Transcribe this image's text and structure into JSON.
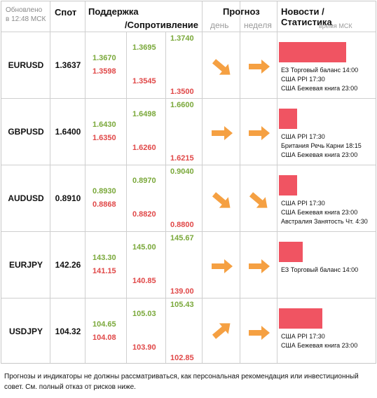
{
  "header": {
    "updated_line1": "Обновлено",
    "updated_line2": "в 12:48 МСК",
    "spot": "Спот",
    "support": "Поддержка",
    "resistance": "/Сопротивление",
    "forecast": "Прогноз",
    "day": "день",
    "week": "неделя",
    "news": "Новости / Статистика",
    "time_msk": "время МСК"
  },
  "colors": {
    "support": "#7aa83a",
    "resistance": "#e04848",
    "arrow": "#f5a042",
    "news_bar": "#f05462"
  },
  "rows": [
    {
      "symbol": "EURUSD",
      "spot": "1.3637",
      "s1": "1.3670",
      "r1": "1.3598",
      "s2": "1.3695",
      "r2": "1.3545",
      "s3": "1.3740",
      "r3": "1.3500",
      "day": "down-right-arrow",
      "week": "right-arrow",
      "news_level": 0.8,
      "news": [
        "ЕЗ Торговый баланс 14:00",
        "США PPI 17:30",
        "США Бежевая книга 23:00"
      ]
    },
    {
      "symbol": "GBPUSD",
      "spot": "1.6400",
      "s1": "1.6430",
      "r1": "1.6350",
      "s2": "1.6498",
      "r2": "1.6260",
      "s3": "1.6600",
      "r3": "1.6215",
      "day": "right-arrow",
      "week": "right-arrow",
      "news_level": 0.22,
      "news": [
        "США PPI 17:30",
        "Британия Речь Карни 18:15",
        "США Бежевая книга 23:00"
      ]
    },
    {
      "symbol": "AUDUSD",
      "spot": "0.8910",
      "s1": "0.8930",
      "r1": "0.8868",
      "s2": "0.8970",
      "r2": "0.8820",
      "s3": "0.9040",
      "r3": "0.8800",
      "day": "down-right-arrow",
      "week": "down-right-arrow",
      "news_level": 0.22,
      "news": [
        "США PPI 17:30",
        "США Бежевая книга 23:00",
        "Австралия Занятость Чт. 4:30"
      ]
    },
    {
      "symbol": "EURJPY",
      "spot": "142.26",
      "s1": "143.30",
      "r1": "141.15",
      "s2": "145.00",
      "r2": "140.85",
      "s3": "145.67",
      "r3": "139.00",
      "day": "right-arrow",
      "week": "right-arrow",
      "news_level": 0.28,
      "news": [
        "ЕЗ Торговый баланс 14:00"
      ]
    },
    {
      "symbol": "USDJPY",
      "spot": "104.32",
      "s1": "104.65",
      "r1": "104.08",
      "s2": "105.03",
      "r2": "103.90",
      "s3": "105.43",
      "r3": "102.85",
      "day": "up-right-arrow",
      "week": "right-arrow",
      "news_level": 0.52,
      "news": [
        "США PPI 17:30",
        "США Бежевая книга 23:00"
      ]
    }
  ],
  "disclaimer": "Прогнозы и индикаторы не должны рассматриваться, как персональная рекомендация или инвестиционный совет. См. полный отказ от рисков ниже."
}
